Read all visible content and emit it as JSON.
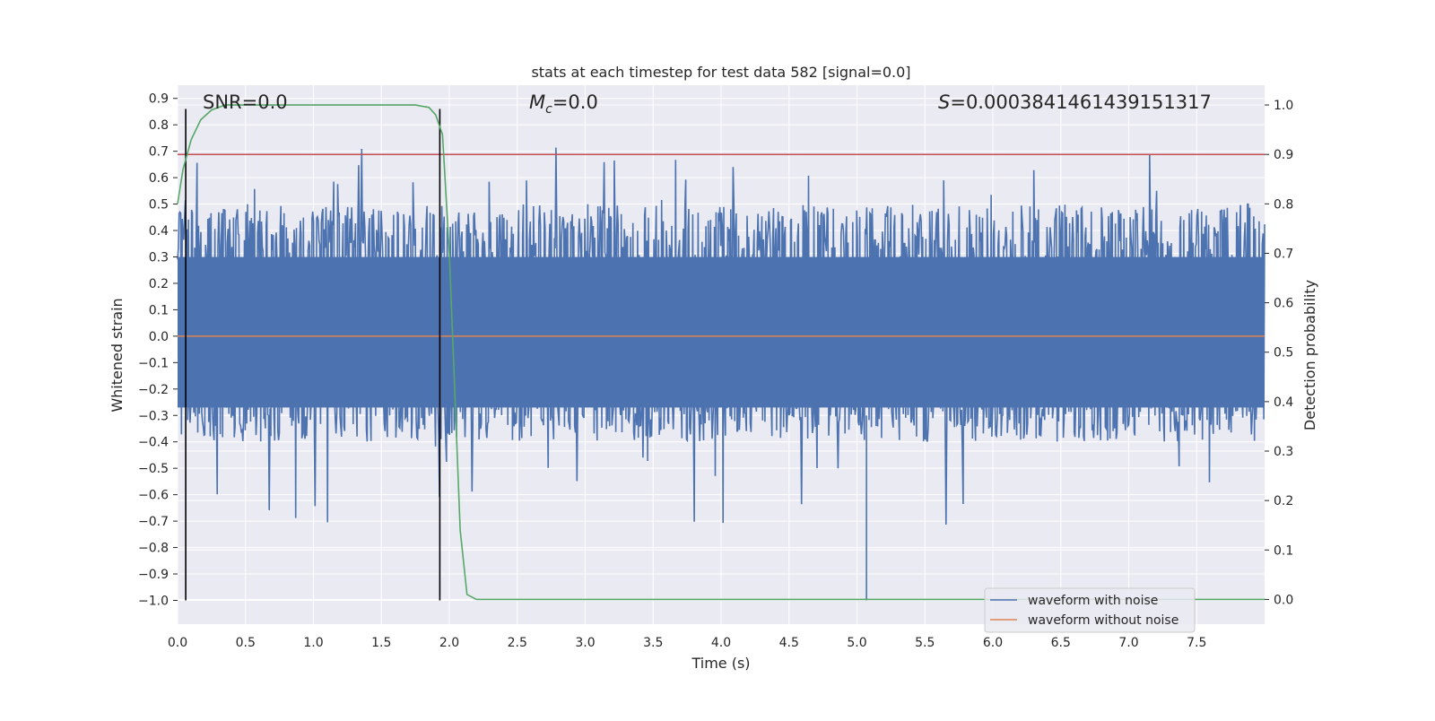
{
  "chart_data": {
    "type": "line",
    "title": "stats at each timestep for test data 582 [signal=0.0]",
    "xlabel": "Time (s)",
    "ylabel": "Whitened strain",
    "y2label": "Detection probability",
    "xlim": [
      0.0,
      8.0
    ],
    "ylim": [
      -1.09,
      0.95
    ],
    "y2lim": [
      -0.05,
      1.04
    ],
    "xticks": [
      "0.0",
      "0.5",
      "1.0",
      "1.5",
      "2.0",
      "2.5",
      "3.0",
      "3.5",
      "4.0",
      "4.5",
      "5.0",
      "5.5",
      "6.0",
      "6.5",
      "7.0",
      "7.5"
    ],
    "yticks": [
      "0.9",
      "0.8",
      "0.7",
      "0.6",
      "0.5",
      "0.4",
      "0.3",
      "0.2",
      "0.1",
      "0.0",
      "−0.1",
      "−0.2",
      "−0.3",
      "−0.4",
      "−0.5",
      "−0.6",
      "−0.7",
      "−0.8",
      "−0.9",
      "−1.0"
    ],
    "y2ticks": [
      "1.0",
      "0.9",
      "0.8",
      "0.7",
      "0.6",
      "0.5",
      "0.4",
      "0.3",
      "0.2",
      "0.1",
      "0.0"
    ],
    "annotations": {
      "snr": "SNR=0.0",
      "mc_symbol": "M",
      "mc_sub": "c",
      "mc_value": "=0.0",
      "s_symbol": "S",
      "s_value": "=0.0003841461439151317"
    },
    "threshold": {
      "value": 0.9,
      "axis": "y2",
      "color": "#c44e52"
    },
    "vertical_lines": [
      0.06,
      1.93
    ],
    "vertical_line_range": [
      -1.0,
      0.86
    ],
    "series": [
      {
        "name": "waveform with noise",
        "axis": "y",
        "color": "#4c72b0",
        "style": "noise",
        "typical_envelope": [
          -0.4,
          0.5
        ],
        "max": 0.86,
        "min": -1.0
      },
      {
        "name": "waveform without noise",
        "axis": "y",
        "color": "#dd8452",
        "x": [
          0.0,
          8.0
        ],
        "values": [
          0.0,
          0.0
        ]
      },
      {
        "axis": "y2",
        "color": "#55a868",
        "x": [
          0.0,
          0.04,
          0.1,
          0.17,
          0.25,
          0.35,
          0.5,
          1.0,
          1.5,
          1.75,
          1.85,
          1.9,
          1.95,
          2.0,
          2.05,
          2.08,
          2.13,
          2.2,
          2.3,
          8.0
        ],
        "values": [
          0.8,
          0.87,
          0.93,
          0.97,
          0.99,
          1.0,
          1.0,
          1.0,
          1.0,
          1.0,
          0.995,
          0.98,
          0.94,
          0.7,
          0.35,
          0.14,
          0.01,
          0.0,
          0.0,
          0.0
        ]
      }
    ],
    "legend": {
      "position": "lower-right",
      "entries": [
        "waveform with noise",
        "waveform without noise"
      ]
    },
    "grid": true
  }
}
